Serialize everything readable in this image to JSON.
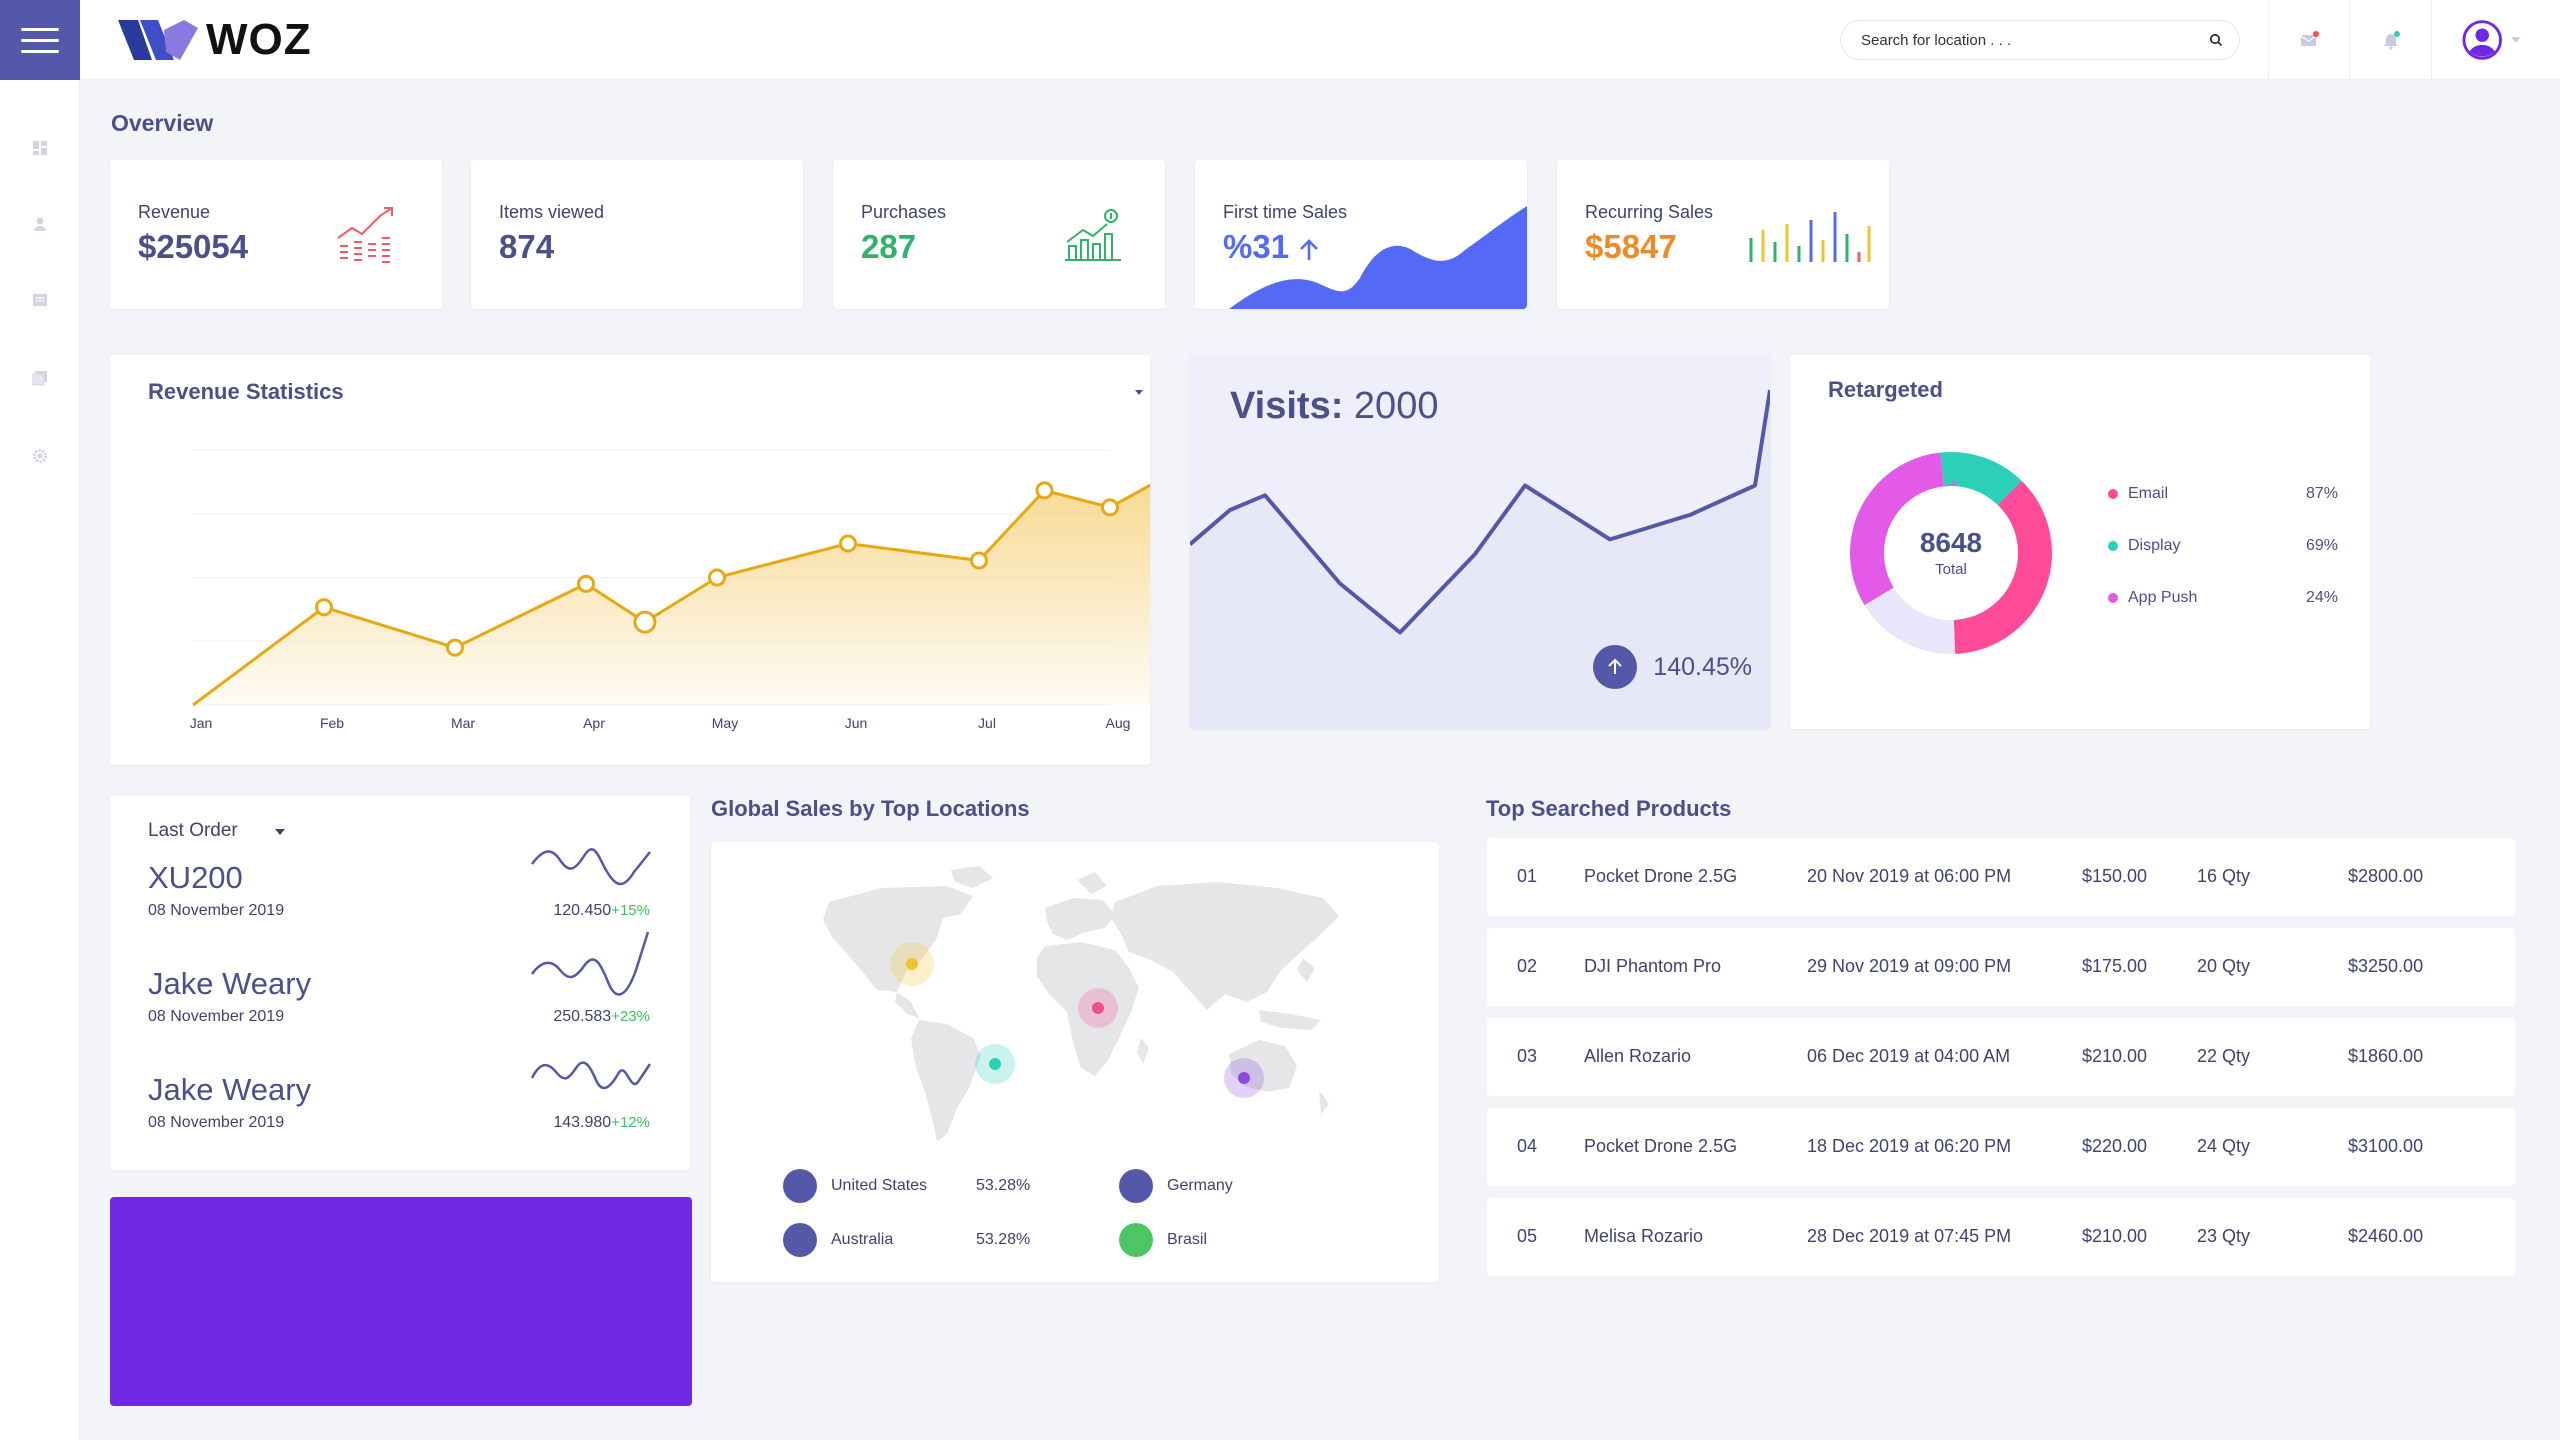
{
  "brand": {
    "name": "WOZ"
  },
  "search": {
    "placeholder": "Search for location . . ."
  },
  "page_title": "Overview",
  "kpis": [
    {
      "label": "Revenue",
      "value": "$25054",
      "color": "#4b4f8a"
    },
    {
      "label": "Items viewed",
      "value": "874",
      "color": "#4b4f8a"
    },
    {
      "label": "Purchases",
      "value": "287",
      "color": "#2fb36b"
    },
    {
      "label": "First time Sales",
      "value": "%31",
      "color": "#5469f5"
    },
    {
      "label": "Recurring Sales",
      "value": "$5847",
      "color": "#f08a24"
    }
  ],
  "revenue": {
    "title": "Revenue Statistics",
    "chart_data": {
      "type": "area",
      "title": "Revenue Statistics",
      "x": [
        "Jan",
        "Feb",
        "Mar",
        "Apr",
        "May",
        "Jun",
        "Jul",
        "Aug"
      ],
      "x_points": [
        0,
        1,
        2,
        3,
        3.45,
        4,
        5,
        6,
        6.5,
        7,
        7.5,
        8
      ],
      "y_points": [
        0,
        46,
        27,
        57,
        39,
        60,
        76,
        68,
        101,
        93,
        110,
        106
      ],
      "markers": [
        1,
        2,
        3,
        4,
        5,
        6,
        7,
        8,
        9
      ],
      "line_color": "#e8a812",
      "fill_color": "#f6d27a",
      "grid": true
    }
  },
  "visits": {
    "label": "Visits:",
    "value": "2000",
    "change": "140.45%",
    "chart_data": {
      "type": "area",
      "values": [
        46,
        60,
        66,
        30,
        10,
        42,
        70,
        48,
        58,
        70,
        100
      ],
      "line_color": "#5558a8",
      "fill_color": "#e6e7f7"
    }
  },
  "retargeted": {
    "title": "Retargeted",
    "total": "8648",
    "total_label": "Total",
    "legend": [
      {
        "name": "Email",
        "pct": "87%",
        "color": "#ff4b9a"
      },
      {
        "name": "Display",
        "pct": "69%",
        "color": "#2ccfb8"
      },
      {
        "name": "App Push",
        "pct": "24%",
        "color": "#e35ae8"
      }
    ],
    "chart_data": {
      "type": "pie",
      "segments": [
        {
          "value": 14,
          "color": "#2ccfb8"
        },
        {
          "value": 37,
          "color": "#ff4b9a"
        },
        {
          "value": 17,
          "color": "#e8e6fb"
        },
        {
          "value": 32,
          "color": "#e35ae8"
        }
      ]
    }
  },
  "last_order": {
    "dropdown_label": "Last Order",
    "items": [
      {
        "name": "XU200",
        "date": "08 November 2019",
        "value": "120.450",
        "pct": "+15%"
      },
      {
        "name": "Jake Weary",
        "date": "08 November 2019",
        "value": "250.583",
        "pct": "+23%"
      },
      {
        "name": "Jake Weary",
        "date": "08 November 2019",
        "value": "143.980",
        "pct": "+12%"
      }
    ]
  },
  "global_sales": {
    "title": "Global Sales by Top Locations",
    "markers": [
      {
        "name": "North America",
        "color": "#f2c230"
      },
      {
        "name": "Africa",
        "color": "#f0508a"
      },
      {
        "name": "South America",
        "color": "#2ccfb8"
      },
      {
        "name": "Australia",
        "color": "#8a4be0"
      }
    ],
    "legend": [
      {
        "name": "United States",
        "pct": "53.28%",
        "color": "#5558a8"
      },
      {
        "name": "Germany",
        "pct": "",
        "color": "#5558a8"
      },
      {
        "name": "Australia",
        "pct": "53.28%",
        "color": "#5558a8"
      },
      {
        "name": "Brasil",
        "pct": "",
        "color": "#4cc764"
      }
    ]
  },
  "top_products": {
    "title": "Top Searched Products",
    "rows": [
      {
        "no": "01",
        "name": "Pocket Drone 2.5G",
        "date": "20 Nov 2019 at 06:00 PM",
        "price": "$150.00",
        "qty": "16 Qty",
        "total": "$2800.00"
      },
      {
        "no": "02",
        "name": "DJI Phantom Pro",
        "date": "29 Nov 2019 at 09:00 PM",
        "price": "$175.00",
        "qty": "20 Qty",
        "total": "$3250.00"
      },
      {
        "no": "03",
        "name": "Allen Rozario",
        "date": "06 Dec 2019 at 04:00 AM",
        "price": "$210.00",
        "qty": "22 Qty",
        "total": "$1860.00"
      },
      {
        "no": "04",
        "name": "Pocket Drone 2.5G",
        "date": "18 Dec 2019 at 06:20 PM",
        "price": "$220.00",
        "qty": "24 Qty",
        "total": "$3100.00"
      },
      {
        "no": "05",
        "name": "Melisa Rozario",
        "date": "28 Dec 2019 at 07:45 PM",
        "price": "$210.00",
        "qty": "23 Qty",
        "total": "$2460.00"
      }
    ]
  }
}
